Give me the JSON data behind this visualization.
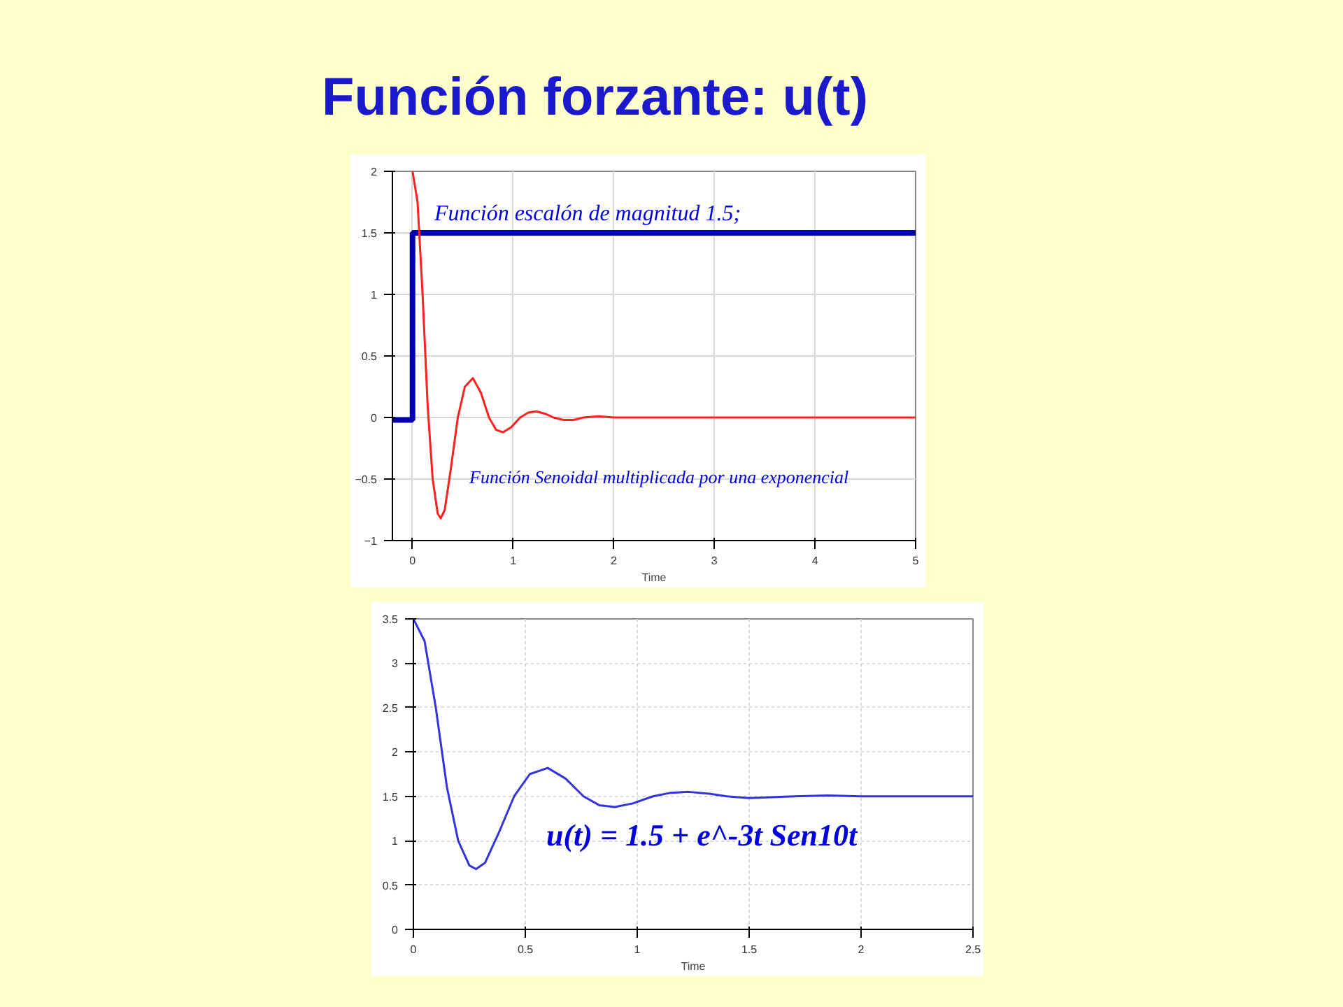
{
  "chart_data": [
    {
      "type": "line",
      "title": "Función forzante: u(t)",
      "xlabel": "Time",
      "xlim": [
        -0.2,
        5
      ],
      "ylim": [
        -1,
        2
      ],
      "xticks": [
        0,
        1,
        2,
        3,
        4,
        5
      ],
      "yticks": [
        -1,
        -0.5,
        0,
        0.5,
        1,
        1.5,
        2
      ],
      "grid": true,
      "series": [
        {
          "type": "step",
          "color": "#0000b0",
          "x": [
            -0.2,
            0,
            5
          ],
          "values": [
            -0.02,
            1.5,
            1.5
          ]
        },
        {
          "color": "#ff2020",
          "x": [
            0,
            0.05,
            0.1,
            0.15,
            0.2,
            0.25,
            0.28,
            0.32,
            0.38,
            0.45,
            0.52,
            0.6,
            0.68,
            0.76,
            0.83,
            0.9,
            0.98,
            1.07,
            1.15,
            1.23,
            1.32,
            1.4,
            1.5,
            1.6,
            1.7,
            1.85,
            2.0,
            2.3,
            3,
            4,
            5
          ],
          "values": [
            2,
            1.75,
            1.0,
            0.1,
            -0.5,
            -0.78,
            -0.82,
            -0.75,
            -0.42,
            0,
            0.25,
            0.32,
            0.2,
            0,
            -0.1,
            -0.12,
            -0.08,
            0,
            0.04,
            0.05,
            0.03,
            0,
            -0.02,
            -0.02,
            0,
            0.01,
            0,
            0,
            0,
            0,
            0
          ]
        }
      ],
      "annotations": [
        "Función escalón de magnitud 1.5;",
        "Función Senoidal multiplicada por una exponencial"
      ]
    },
    {
      "type": "line",
      "xlabel": "Time",
      "xlim": [
        0,
        2.5
      ],
      "ylim": [
        0,
        3.5
      ],
      "xticks": [
        0,
        0.5,
        1,
        1.5,
        2,
        2.5
      ],
      "yticks": [
        0,
        0.5,
        1,
        1.5,
        2,
        2.5,
        3,
        3.5
      ],
      "grid": true,
      "series": [
        {
          "color": "#3333dd",
          "x": [
            0,
            0.05,
            0.1,
            0.15,
            0.2,
            0.25,
            0.28,
            0.32,
            0.38,
            0.45,
            0.52,
            0.6,
            0.68,
            0.76,
            0.83,
            0.9,
            0.98,
            1.07,
            1.15,
            1.23,
            1.32,
            1.4,
            1.5,
            1.6,
            1.7,
            1.85,
            2.0,
            2.3,
            2.5
          ],
          "values": [
            3.5,
            3.25,
            2.5,
            1.6,
            1.0,
            0.72,
            0.68,
            0.75,
            1.08,
            1.5,
            1.75,
            1.82,
            1.7,
            1.5,
            1.4,
            1.38,
            1.42,
            1.5,
            1.54,
            1.55,
            1.53,
            1.5,
            1.48,
            1.49,
            1.5,
            1.51,
            1.5,
            1.5,
            1.5
          ]
        }
      ],
      "annotations": [
        "u(t) = 1.5 + e^-3t Sen10t"
      ]
    }
  ]
}
